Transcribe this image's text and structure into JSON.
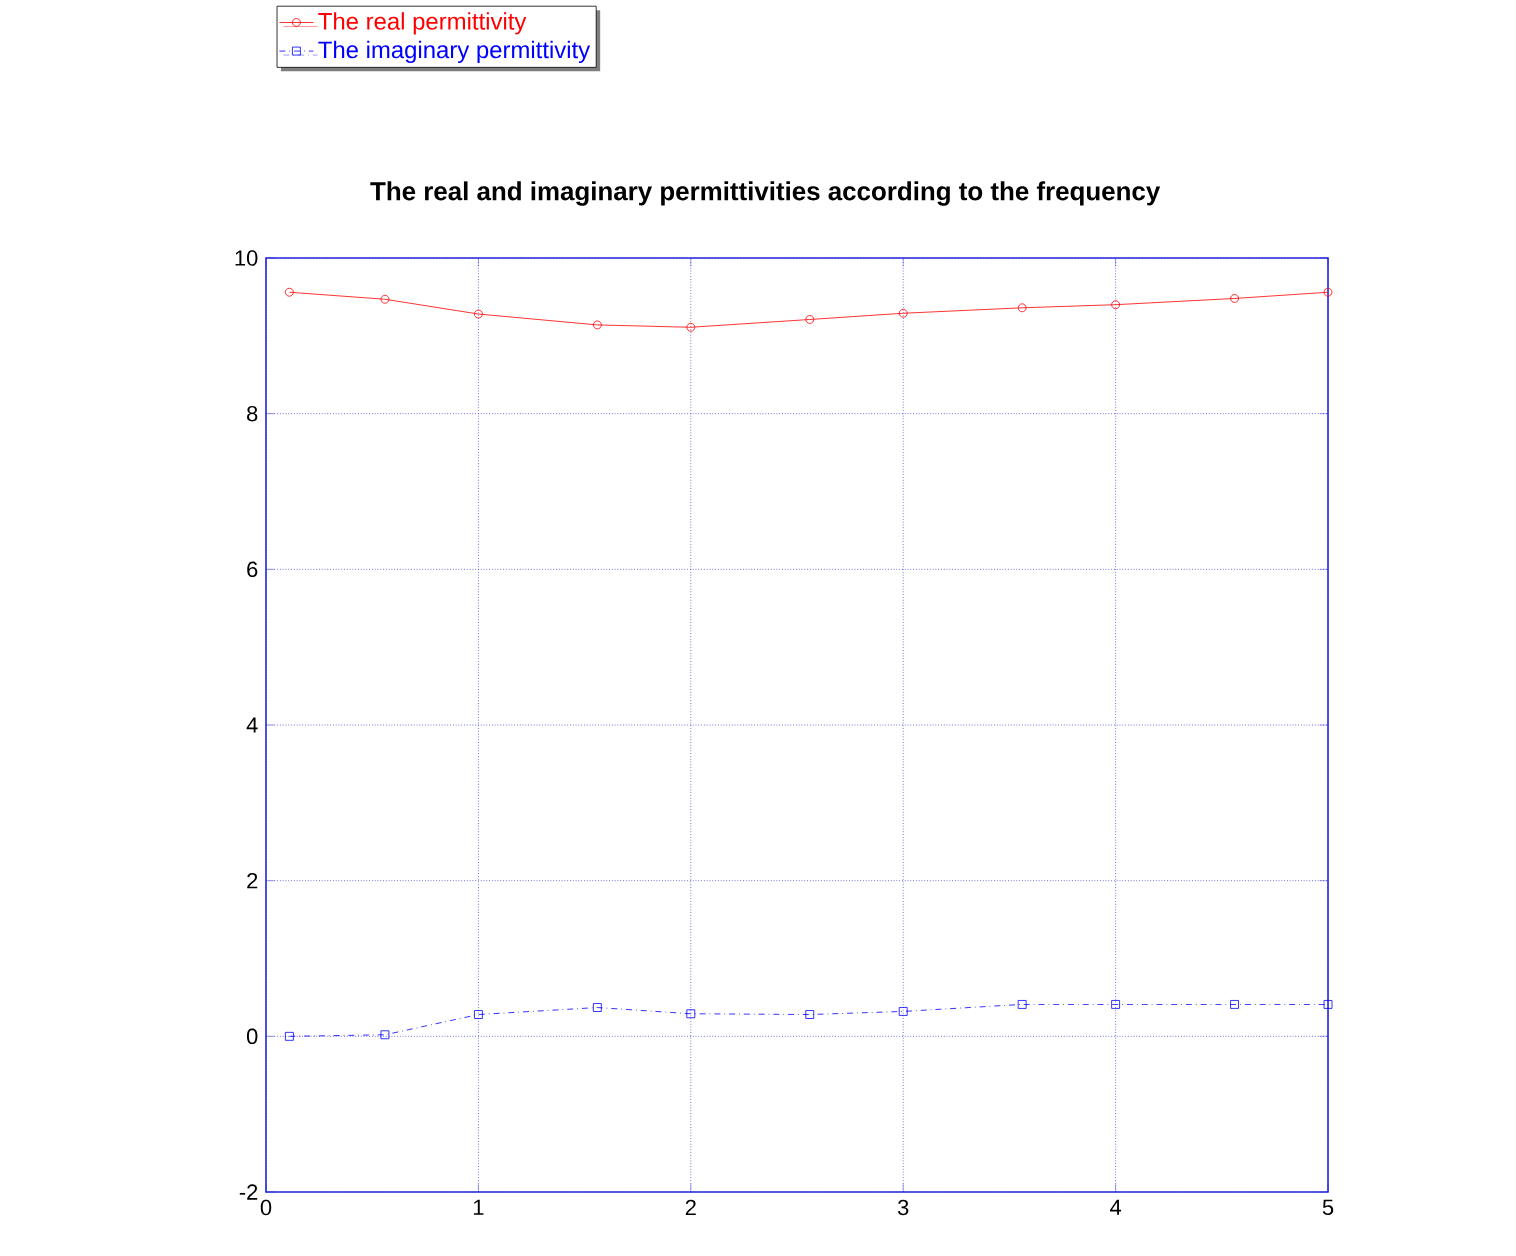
{
  "chart_data": {
    "type": "line",
    "title": "The real and imaginary permittivities according to the frequency",
    "xlim": [
      0,
      5
    ],
    "xticks": [
      0,
      1,
      2,
      3,
      4,
      5
    ],
    "ylim": [
      -2,
      10
    ],
    "yticks": [
      -2,
      0,
      2,
      4,
      6,
      8,
      10
    ],
    "grid": true,
    "legend": "top left",
    "series": [
      {
        "name": "The real permittivity",
        "color": "#ff0000",
        "marker": "circle",
        "line_style": "solid",
        "x": [
          0.11,
          0.56,
          1,
          1.56,
          2,
          2.56,
          3,
          3.56,
          4,
          4.56,
          5
        ],
        "values": [
          9.56,
          9.47,
          9.28,
          9.14,
          9.11,
          9.21,
          9.29,
          9.36,
          9.4,
          9.48,
          9.56
        ]
      },
      {
        "name": "The imaginary permittivity",
        "color": "#0000ff",
        "marker": "square",
        "line_style": "dashed",
        "x": [
          0.11,
          0.56,
          1,
          1.56,
          2,
          2.56,
          3,
          3.56,
          4,
          4.56,
          5
        ],
        "values": [
          0,
          0.02,
          0.28,
          0.37,
          0.29,
          0.28,
          0.32,
          0.41,
          0.41,
          0.41,
          0.41
        ]
      }
    ]
  }
}
